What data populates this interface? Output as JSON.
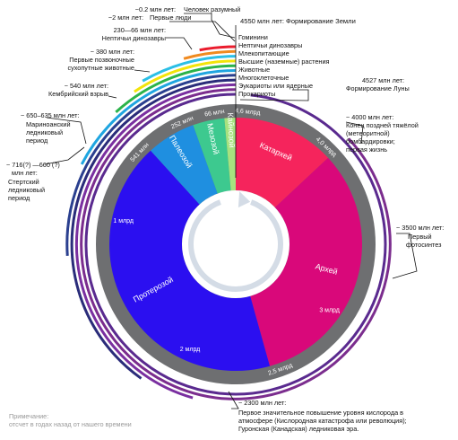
{
  "title": "4550 млн лет: Формирование Земли",
  "timeline": {
    "eons": [
      {
        "key": "hadean",
        "label": "Катархей",
        "start_mya": 4600,
        "end_mya": 4000,
        "color": "#f5245c"
      },
      {
        "key": "archean",
        "label": "Архей",
        "start_mya": 4000,
        "end_mya": 2500,
        "color": "#d9087a"
      },
      {
        "key": "proterozoic",
        "label": "Протерозой",
        "start_mya": 2500,
        "end_mya": 541,
        "color": "#2b0ff0"
      },
      {
        "key": "paleozoic",
        "label": "Палеозой",
        "start_mya": 541,
        "end_mya": 252,
        "color": "#1f8fe0"
      },
      {
        "key": "mesozoic",
        "label": "Мезозой",
        "start_mya": 252,
        "end_mya": 66,
        "color": "#3dc98f"
      },
      {
        "key": "cenozoic",
        "label": "Кайнозой",
        "start_mya": 66,
        "end_mya": 0,
        "color": "#a7e27f"
      }
    ],
    "boundary_labels": [
      {
        "mya": 4600,
        "text": "4,6 млрд"
      },
      {
        "mya": 4000,
        "text": "4,0 млрд"
      },
      {
        "mya": 2500,
        "text": "2,5 млрд"
      },
      {
        "mya": 541,
        "text": "541 млн"
      },
      {
        "mya": 252,
        "text": "252 млн"
      },
      {
        "mya": 66,
        "text": "66 млн"
      }
    ],
    "inner_labels": [
      {
        "mya": 3000,
        "text": "3 млрд"
      },
      {
        "mya": 2000,
        "text": "2 млрд"
      },
      {
        "mya": 1000,
        "text": "1 млрд"
      }
    ],
    "arcs": [
      {
        "start_mya": 4527,
        "color": "#5a2a8f"
      },
      {
        "start_mya": 4000,
        "color": "#7b2d8e"
      },
      {
        "start_mya": 2100,
        "color": "#7a2fa0"
      },
      {
        "start_mya": 1850,
        "color": "#2a2c7a"
      },
      {
        "start_mya": 1200,
        "color": "#2a3f8f"
      },
      {
        "start_mya": 800,
        "color": "#1fa5e0"
      },
      {
        "start_mya": 540,
        "color": "#2bb34a"
      },
      {
        "start_mya": 430,
        "color": "#f2e40a"
      },
      {
        "start_mya": 380,
        "color": "#2bbfe6"
      },
      {
        "start_mya": 200,
        "color": "#f08a1f"
      },
      {
        "start_mya": 135,
        "color": "#ea1c2d"
      }
    ]
  },
  "legend_list": [
    "Гоминини",
    "Нептичьи динозавры",
    "Млекопитающие",
    "Высшие (наземные) растения",
    "Животные",
    "Многоклеточные",
    "Эукариоты или ядерные",
    "Прокариоты"
  ],
  "annotations": {
    "homo_sapiens": "Человек разумный",
    "homo_sapiens_time": "~0.2 млн лет:",
    "first_humans": "Первые люди",
    "first_humans_time": "~2 млн лет:",
    "dinosaurs": [
      "230—66 млн лет:",
      "Нептичьи динозавры"
    ],
    "vertebrates": [
      "~ 380 млн лет:",
      "Первые позвоночные",
      "сухопутные животные"
    ],
    "cambrian": [
      "~ 540 млн лет:",
      "Кембрийский взрыв"
    ],
    "marinoan": [
      "~ 650–635 млн лет:",
      "Мариноанский",
      "ледниковый",
      "период"
    ],
    "sturtian": [
      "~ 716(?) —660 (?)",
      "млн лет:",
      "Стертский",
      "ледниковый",
      "период"
    ],
    "moon": [
      "4527 млн лет:",
      "Формирование Луны"
    ],
    "bombardment": [
      "~ 4000 млн лет:",
      "Конец поздней тяжёлой",
      "(метеоритной)",
      "бомбардировки;",
      "первая жизнь"
    ],
    "photosynthesis": [
      "~ 3500 млн лет:",
      "Первый",
      "фотосинтез"
    ],
    "oxygen": [
      "~ 2300 млн лет:",
      "Первое значительное повышение уровня кислорода в",
      "атмосфере (Кислородная катастрофа или революция);",
      "Гуронская (Канадская) ледниковая эра."
    ]
  },
  "footnote": [
    "Примечание:",
    "отсчет в годах назад от нашего времени"
  ],
  "colors": {
    "ring": "#6e6f71",
    "center_arrow": "#d4dce6",
    "leader": "#111111"
  }
}
